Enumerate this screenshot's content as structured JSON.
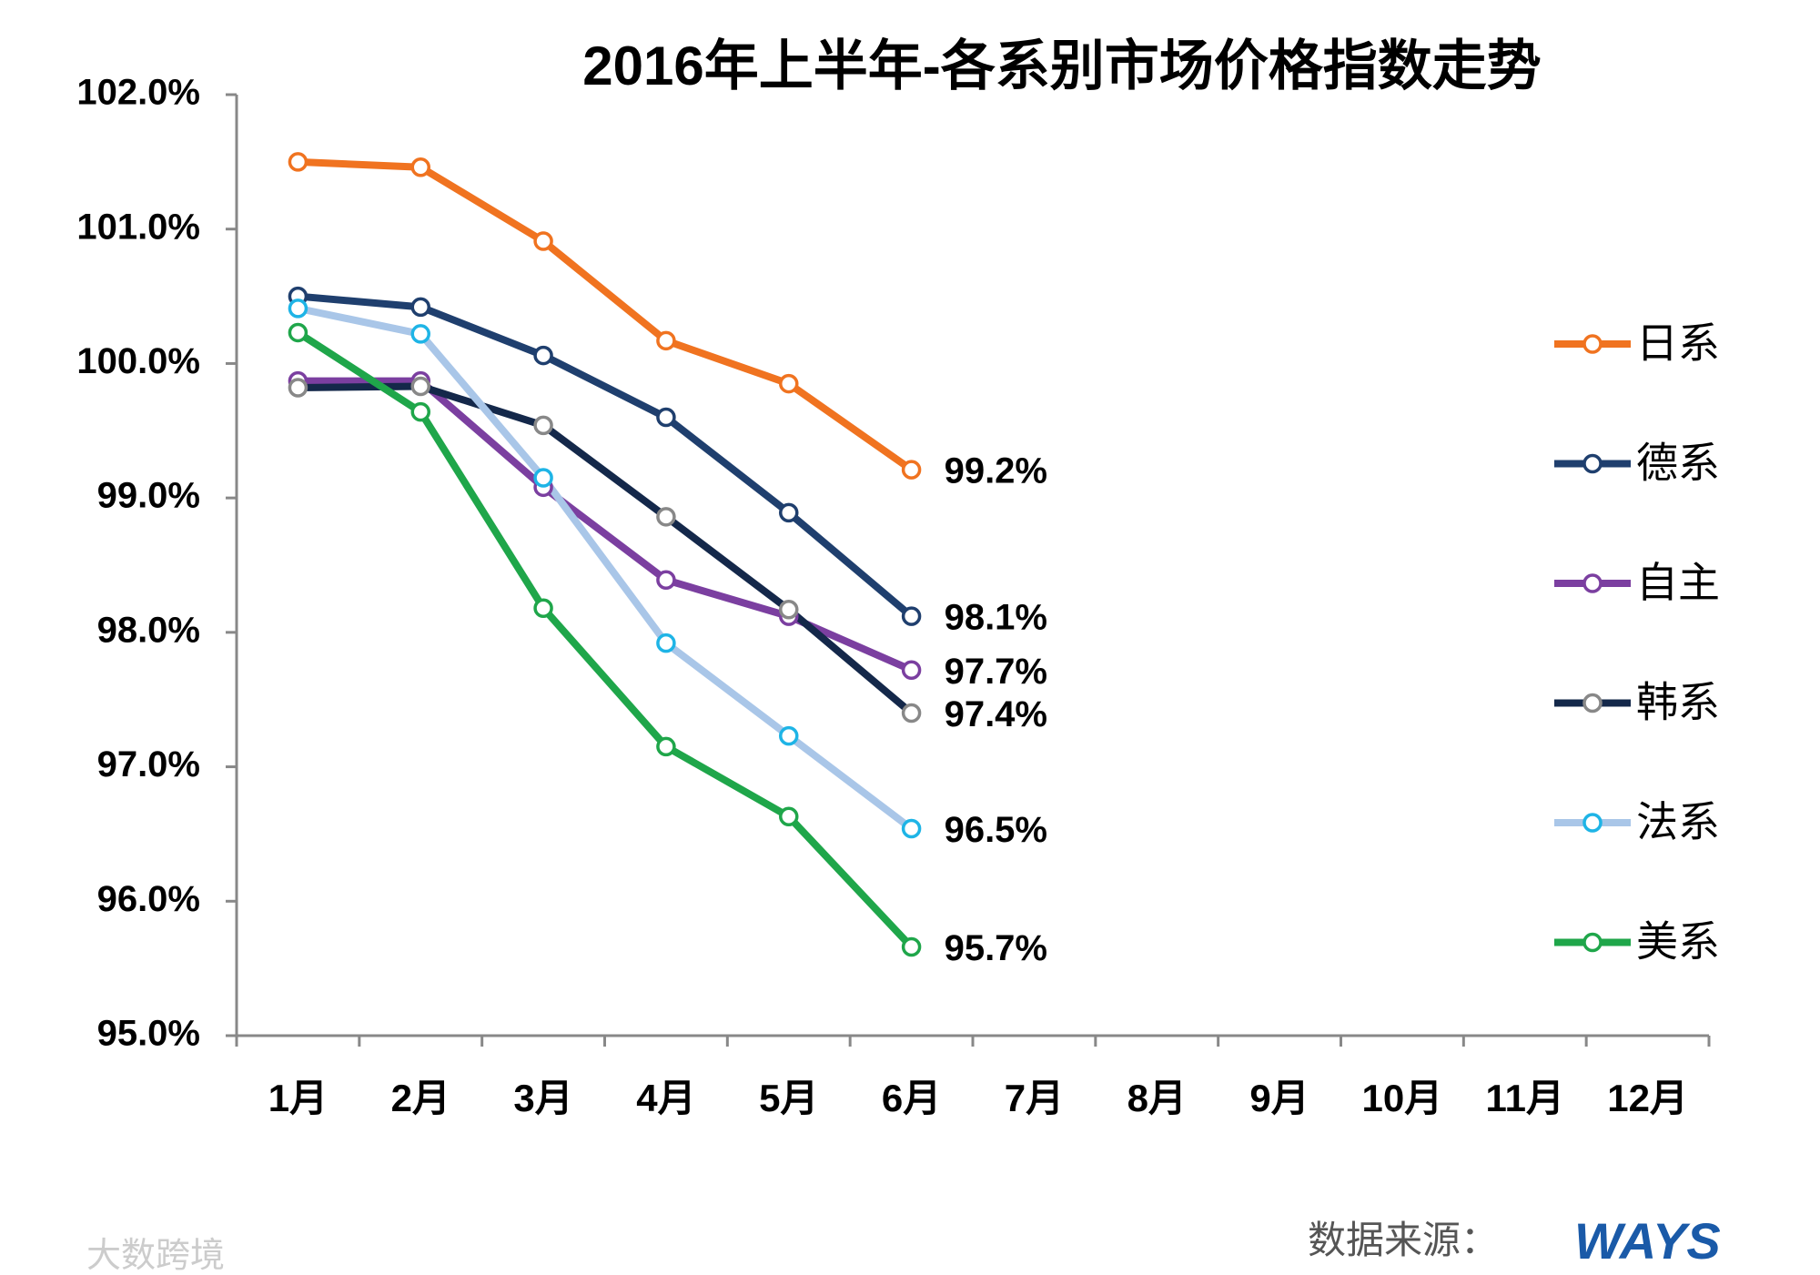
{
  "chart_data": {
    "type": "line",
    "title": "2016年上半年-各系别市场价格指数走势",
    "categories": [
      "1月",
      "2月",
      "3月",
      "4月",
      "5月",
      "6月",
      "7月",
      "8月",
      "9月",
      "10月",
      "11月",
      "12月"
    ],
    "series": [
      {
        "name": "日系",
        "color": "#f07320",
        "marker_color": "#f07320",
        "values": [
          101.5,
          101.46,
          100.91,
          100.17,
          99.85,
          99.21,
          null,
          null,
          null,
          null,
          null,
          null
        ],
        "value_labels": [
          null,
          null,
          null,
          null,
          null,
          "99.2%",
          null,
          null,
          null,
          null,
          null,
          null
        ]
      },
      {
        "name": "德系",
        "color": "#1f3f6e",
        "marker_color": "#1f3f6e",
        "values": [
          100.5,
          100.42,
          100.06,
          99.6,
          98.89,
          98.12,
          null,
          null,
          null,
          null,
          null,
          null
        ],
        "value_labels": [
          null,
          null,
          null,
          null,
          null,
          "98.1%",
          null,
          null,
          null,
          null,
          null,
          null
        ]
      },
      {
        "name": "自主",
        "color": "#7b3fa0",
        "marker_color": "#7b3fa0",
        "values": [
          99.87,
          99.87,
          99.08,
          98.39,
          98.12,
          97.72,
          null,
          null,
          null,
          null,
          null,
          null
        ],
        "value_labels": [
          null,
          null,
          null,
          null,
          null,
          "97.7%",
          null,
          null,
          null,
          null,
          null,
          null
        ]
      },
      {
        "name": "韩系",
        "color": "#14284a",
        "marker_color": "#888888",
        "values": [
          99.82,
          99.83,
          99.54,
          98.86,
          98.17,
          97.4,
          null,
          null,
          null,
          null,
          null,
          null
        ],
        "value_labels": [
          null,
          null,
          null,
          null,
          null,
          "97.4%",
          null,
          null,
          null,
          null,
          null,
          null
        ]
      },
      {
        "name": "法系",
        "color": "#a9c6e8",
        "marker_color": "#1eb4e6",
        "values": [
          100.41,
          100.22,
          99.15,
          97.92,
          97.23,
          96.54,
          null,
          null,
          null,
          null,
          null,
          null
        ],
        "value_labels": [
          null,
          null,
          null,
          null,
          null,
          "96.5%",
          null,
          null,
          null,
          null,
          null,
          null
        ]
      },
      {
        "name": "美系",
        "color": "#1fa64a",
        "marker_color": "#1fa64a",
        "values": [
          100.23,
          99.64,
          98.18,
          97.15,
          96.63,
          95.66,
          null,
          null,
          null,
          null,
          null,
          null
        ],
        "value_labels": [
          null,
          null,
          null,
          null,
          null,
          "95.7%",
          null,
          null,
          null,
          null,
          null,
          null
        ]
      }
    ],
    "ylim": [
      95,
      102
    ],
    "yticks": [
      {
        "value": 95,
        "label": "95.0%"
      },
      {
        "value": 96,
        "label": "96.0%"
      },
      {
        "value": 97,
        "label": "97.0%"
      },
      {
        "value": 98,
        "label": "98.0%"
      },
      {
        "value": 99,
        "label": "99.0%"
      },
      {
        "value": 100,
        "label": "100.0%"
      },
      {
        "value": 101,
        "label": "101.0%"
      },
      {
        "value": 102,
        "label": "102.0%"
      }
    ],
    "grid": false,
    "legend": "right",
    "source": "数据来源：",
    "source_logo": "WAYS",
    "watermark": "大数跨境"
  }
}
